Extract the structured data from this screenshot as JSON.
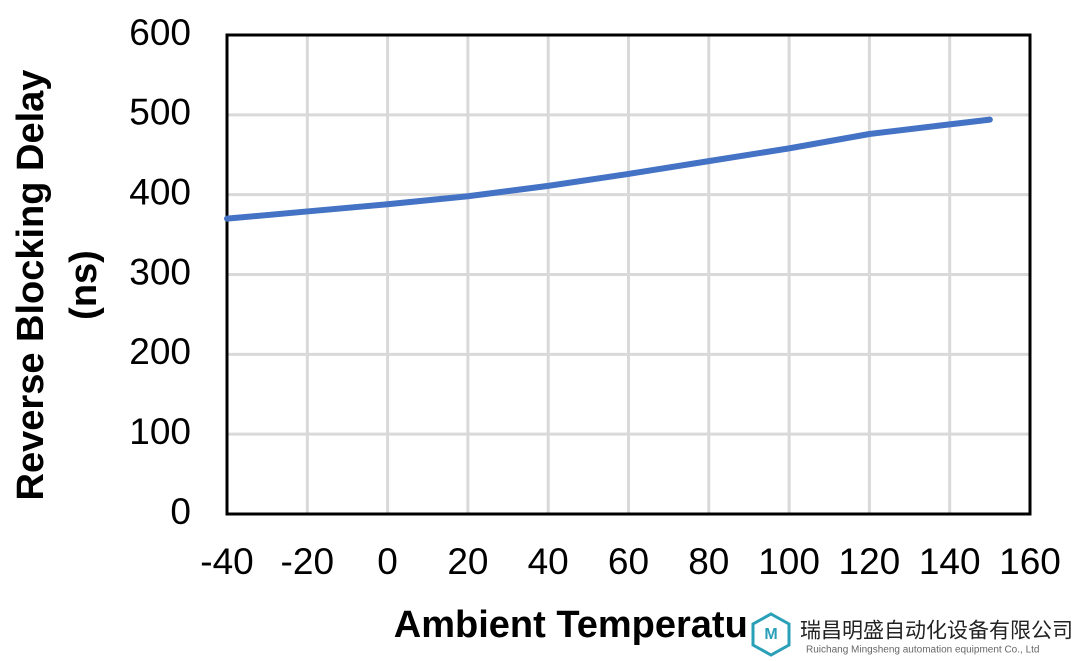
{
  "chart_data": {
    "type": "line",
    "xlabel": "Ambient Temperature (°C)",
    "ylabel": [
      "Reverse Blocking Delay",
      "(ns)"
    ],
    "x": [
      -40,
      -20,
      0,
      20,
      40,
      60,
      80,
      100,
      120,
      140,
      150
    ],
    "series": [
      {
        "color": "#4472c4",
        "values": [
          370,
          379,
          388,
          398,
          411,
          426,
          442,
          458,
          476,
          488,
          494
        ]
      }
    ],
    "xlim": [
      -40,
      160
    ],
    "xticks": [
      -40,
      -20,
      0,
      20,
      40,
      60,
      80,
      100,
      120,
      140,
      160
    ],
    "ylim": [
      0,
      600
    ],
    "yticks": [
      0,
      100,
      200,
      300,
      400,
      500,
      600
    ],
    "grid": true
  },
  "watermark": {
    "company": "瑞昌明盛自动化设备有限公司",
    "company_en": "Ruichang Mingsheng automation equipment Co., Ltd"
  }
}
